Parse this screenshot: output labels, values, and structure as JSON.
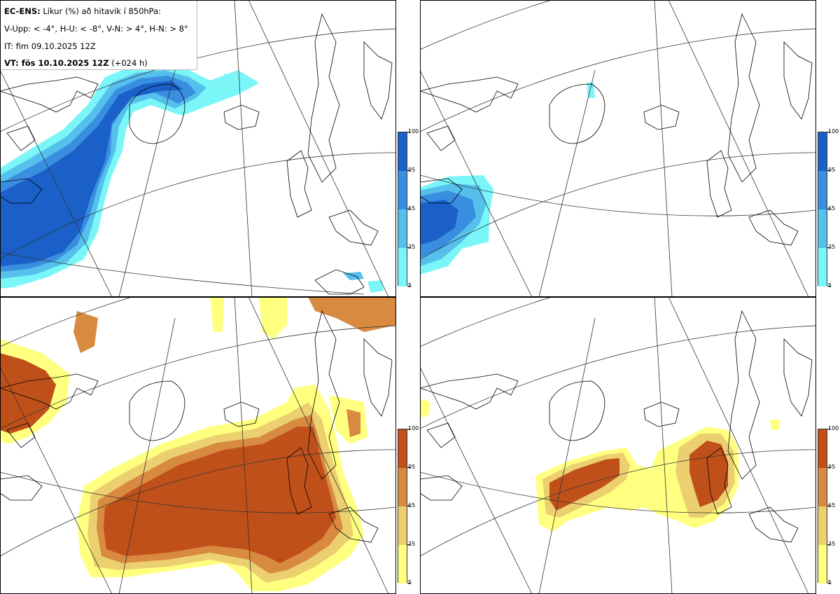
{
  "legend": {
    "title_bold": "EC-ENS:",
    "title_rest": " Líkur (%) að hitavik í 850hPa:",
    "line2": "V-Upp: < -4°, H-U: < -8°, V-N: > 4°, H-N: > 8°",
    "line3": "IT: fim 09.10.2025 12Z",
    "line4_bold": "VT: fös 10.10.2025 12Z",
    "line4_rest": " (+024 h)"
  },
  "colorbar": {
    "ticks": [
      "100",
      "95",
      "65",
      "35",
      "5"
    ],
    "cold_colors": [
      "#1a60c8",
      "#3a8ee0",
      "#55c0ec",
      "#7af6f8"
    ],
    "warm_colors": [
      "#c0501a",
      "#d88a40",
      "#ecd070",
      "#ffff80"
    ]
  },
  "panels": [
    {
      "name": "V-Upp",
      "threshold": "< -4°",
      "theme": "cold"
    },
    {
      "name": "H-U",
      "threshold": "< -8°",
      "theme": "cold"
    },
    {
      "name": "V-N",
      "threshold": "> 4°",
      "theme": "warm"
    },
    {
      "name": "H-N",
      "threshold": "> 8°",
      "theme": "warm"
    }
  ]
}
